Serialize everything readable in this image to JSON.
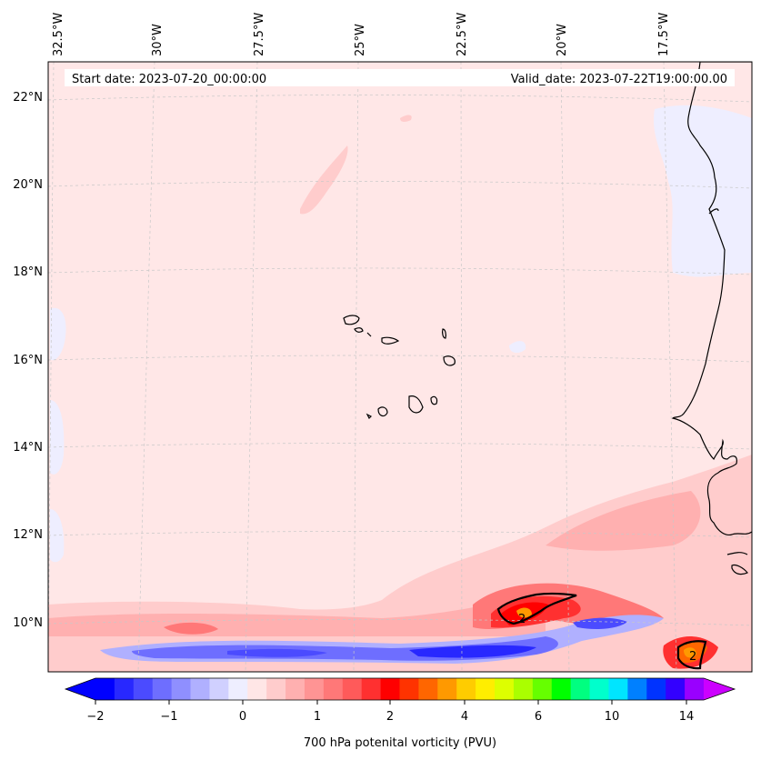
{
  "header": {
    "start_date": "Start date: 2023-07-20_00:00:00",
    "valid_date": "Valid_date: 2023-07-22T19:00:00.00"
  },
  "map": {
    "lon_labels": [
      "32.5°W",
      "30°W",
      "27.5°W",
      "25°W",
      "22.5°W",
      "20°W",
      "17.5°W"
    ],
    "lat_labels": [
      "22°N",
      "20°N",
      "18°N",
      "16°N",
      "14°N",
      "12°N",
      "10°N"
    ],
    "contour_labels": [
      "2",
      "2"
    ],
    "colors": {
      "background_field": "#ffe7e7",
      "coastline": "#000000",
      "gridline": "#c8c8c8"
    }
  },
  "colorbar": {
    "label": "700 hPa potenital vorticity (PVU)",
    "ticks": [
      "−2",
      "−1",
      "0",
      "1",
      "2",
      "4",
      "6",
      "10",
      "14"
    ],
    "colors": [
      "#0000ff",
      "#2828ff",
      "#4b4bff",
      "#6e6eff",
      "#8f8fff",
      "#b0b0ff",
      "#d0d0ff",
      "#eeeeff",
      "#ffe6e6",
      "#ffcccc",
      "#ffb0b0",
      "#ff9494",
      "#ff7878",
      "#ff5a5a",
      "#ff3030",
      "#ff0000",
      "#ff3300",
      "#ff6600",
      "#ff9900",
      "#ffcc00",
      "#ffee00",
      "#ddff00",
      "#aaff00",
      "#66ff00",
      "#00ff00",
      "#00ff80",
      "#00ffcc",
      "#00e5ff",
      "#0080ff",
      "#0033ff",
      "#3300ff",
      "#9900ff"
    ],
    "under_color": "#0000ff",
    "over_color": "#cc00ff"
  }
}
